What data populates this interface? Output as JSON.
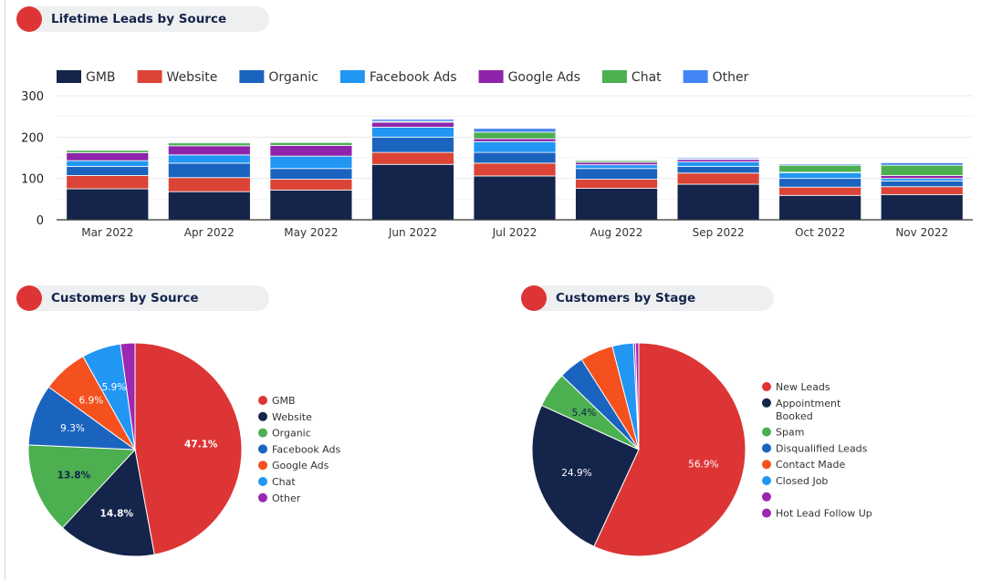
{
  "headers": {
    "leads": "Lifetime Leads by Source",
    "source": "Customers by Source",
    "stage": "Customers by Stage"
  },
  "chart_data": [
    {
      "type": "bar",
      "stacked": true,
      "categories": [
        "Mar 2022",
        "Apr 2022",
        "May 2022",
        "Jun 2022",
        "Jul 2022",
        "Aug 2022",
        "Sep 2022",
        "Oct 2022",
        "Nov 2022"
      ],
      "ylim": [
        0,
        300
      ],
      "yticks": [
        0,
        100,
        200,
        300
      ],
      "grid": true,
      "legend": "top",
      "series": [
        {
          "name": "GMB",
          "color": "#14244a",
          "values": [
            75,
            68,
            72,
            134,
            106,
            76,
            86,
            59,
            61
          ]
        },
        {
          "name": "Website",
          "color": "#db4437",
          "values": [
            32,
            34,
            26,
            29,
            31,
            22,
            27,
            20,
            19
          ]
        },
        {
          "name": "Organic",
          "color": "#1a64c0",
          "values": [
            22,
            35,
            26,
            37,
            26,
            26,
            16,
            21,
            14
          ]
        },
        {
          "name": "Facebook Ads",
          "color": "#2196f3",
          "values": [
            14,
            20,
            30,
            24,
            26,
            9,
            11,
            14,
            6
          ]
        },
        {
          "name": "Google Ads",
          "color": "#8e24aa",
          "values": [
            19,
            22,
            26,
            12,
            7,
            6,
            6,
            1,
            7
          ]
        },
        {
          "name": "Chat",
          "color": "#4caf50",
          "values": [
            6,
            7,
            7,
            2,
            16,
            4,
            2,
            17,
            25
          ]
        },
        {
          "name": "Other",
          "color": "#4285f4",
          "values": [
            2,
            2,
            2,
            5,
            9,
            2,
            3,
            3,
            6
          ]
        }
      ]
    },
    {
      "type": "pie",
      "legend": "right",
      "slices": [
        {
          "name": "GMB",
          "value": 47.1,
          "label": "47.1%",
          "color": "#dd3535"
        },
        {
          "name": "Website",
          "value": 14.8,
          "label": "14.8%",
          "color": "#14244a"
        },
        {
          "name": "Organic",
          "value": 13.8,
          "label": "13.8%",
          "color": "#4caf50"
        },
        {
          "name": "Facebook Ads",
          "value": 9.3,
          "label": "9.3%",
          "color": "#1a64c0"
        },
        {
          "name": "Google Ads",
          "value": 6.9,
          "label": "6.9%",
          "color": "#f4511e"
        },
        {
          "name": "Chat",
          "value": 5.9,
          "label": "5.9%",
          "color": "#2196f3"
        },
        {
          "name": "Other",
          "value": 2.2,
          "label": "",
          "color": "#9c27b0"
        }
      ]
    },
    {
      "type": "pie",
      "legend": "right",
      "slices": [
        {
          "name": "New Leads",
          "value": 56.9,
          "label": "56.9%",
          "color": "#dd3535"
        },
        {
          "name": "Appointment Booked",
          "value": 24.9,
          "label": "24.9%",
          "color": "#14244a"
        },
        {
          "name": "Spam",
          "value": 5.4,
          "label": "5.4%",
          "color": "#4caf50"
        },
        {
          "name": "Disqualified Leads",
          "value": 3.8,
          "label": "",
          "color": "#1a64c0"
        },
        {
          "name": "Contact Made",
          "value": 5.0,
          "label": "",
          "color": "#f4511e"
        },
        {
          "name": "Closed Job",
          "value": 3.2,
          "label": "",
          "color": "#2196f3"
        },
        {
          "name": "",
          "value": 0.3,
          "label": "",
          "color": "#9c27b0"
        },
        {
          "name": "Hot Lead Follow Up",
          "value": 0.5,
          "label": "",
          "color": "#9c27b0"
        }
      ]
    }
  ]
}
